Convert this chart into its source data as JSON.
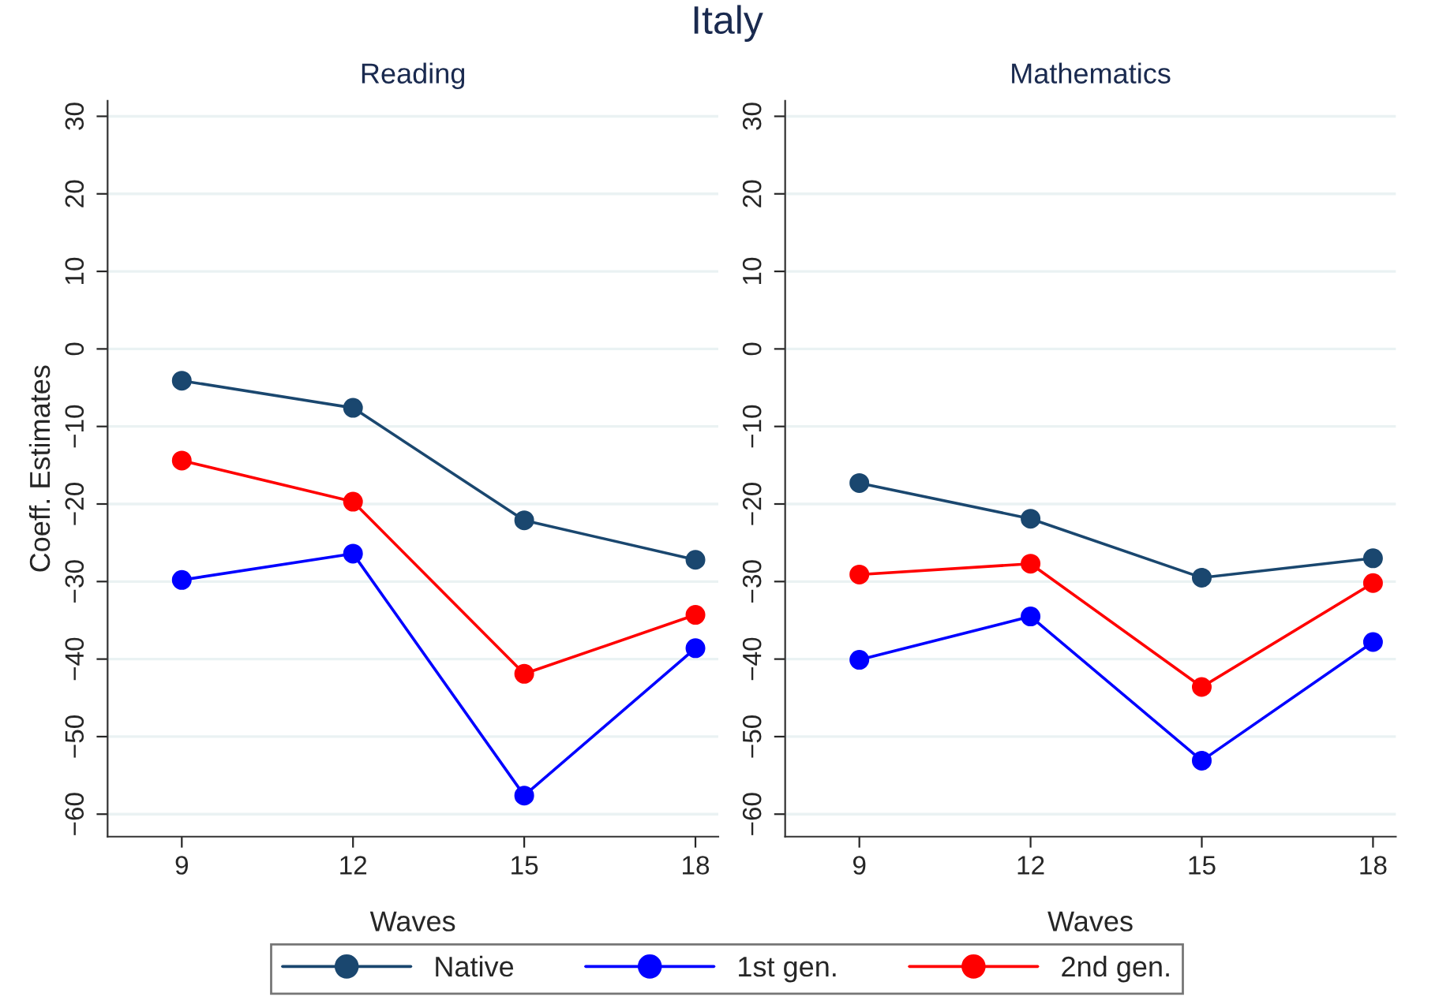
{
  "chart_data": [
    {
      "type": "line",
      "title": "Italy",
      "subtitle": "Reading",
      "xlabel": "Waves",
      "ylabel": "Coeff. Estimates",
      "x": [
        9,
        12,
        15,
        18
      ],
      "xlim": [
        7.7,
        18.4
      ],
      "xticks": [
        9,
        12,
        15,
        18
      ],
      "ylim": [
        -62.9,
        32
      ],
      "yticks": [
        -60,
        -50,
        -40,
        -30,
        -20,
        -10,
        0,
        10,
        20,
        30
      ],
      "grid": "y",
      "marker": "circle",
      "legend": "bottom",
      "series": [
        {
          "name": "Native",
          "color": "#1a476f",
          "values": [
            -4.1,
            -7.6,
            -22.1,
            -27.2
          ]
        },
        {
          "name": "1st gen.",
          "color": "#0000ff",
          "values": [
            -29.8,
            -26.4,
            -57.6,
            -38.6
          ]
        },
        {
          "name": "2nd gen.",
          "color": "#ff0000",
          "values": [
            -14.4,
            -19.7,
            -41.9,
            -34.3
          ]
        }
      ]
    },
    {
      "type": "line",
      "subtitle": "Mathematics",
      "xlabel": "Waves",
      "x": [
        9,
        12,
        15,
        18
      ],
      "xlim": [
        7.7,
        18.4
      ],
      "xticks": [
        9,
        12,
        15,
        18
      ],
      "ylim": [
        -62.9,
        32
      ],
      "yticks": [
        -60,
        -50,
        -40,
        -30,
        -20,
        -10,
        0,
        10,
        20,
        30
      ],
      "grid": "y",
      "marker": "circle",
      "series": [
        {
          "color": "#1a476f",
          "values": [
            -17.3,
            -21.9,
            -29.5,
            -27.0
          ]
        },
        {
          "color": "#0000ff",
          "values": [
            -40.1,
            -34.5,
            -53.1,
            -37.8
          ]
        },
        {
          "color": "#ff0000",
          "values": [
            -29.1,
            -27.7,
            -43.6,
            -30.2
          ]
        }
      ]
    }
  ]
}
